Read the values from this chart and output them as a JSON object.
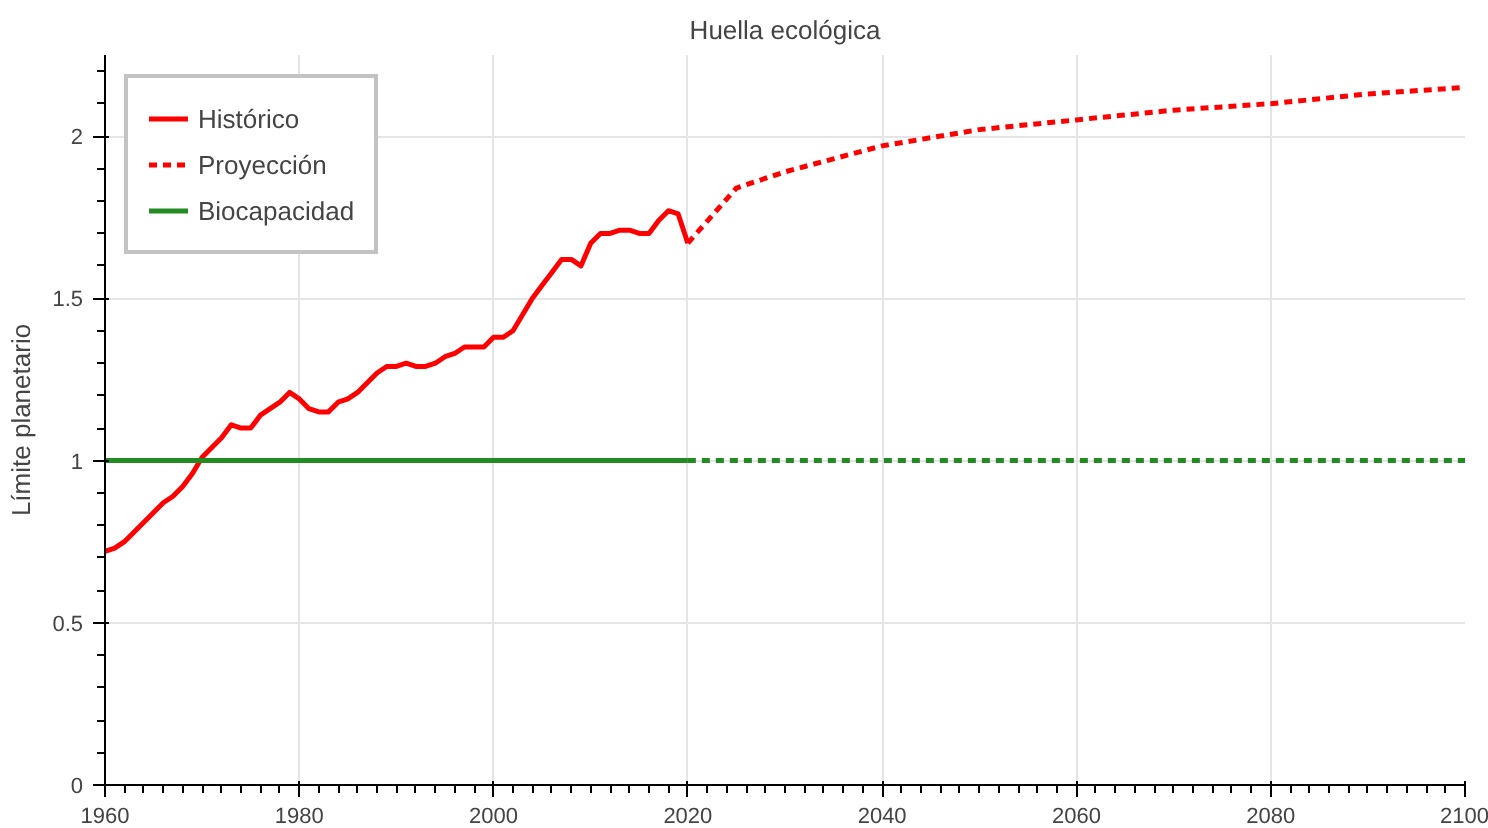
{
  "chart_data": {
    "type": "line",
    "title": "Huella ecológica",
    "ylabel": "Límite planetario",
    "xlim": [
      1960,
      2100
    ],
    "ylim": [
      0,
      2.25
    ],
    "xticks": [
      1960,
      1980,
      2000,
      2020,
      2040,
      2060,
      2080,
      2100
    ],
    "yticks": [
      0,
      0.5,
      1,
      1.5,
      2
    ],
    "grid": true,
    "legend": "top left",
    "series": [
      {
        "name": "Histórico",
        "color": "#ff0000",
        "line_style": "solid",
        "x": [
          1960,
          1961,
          1962,
          1963,
          1964,
          1965,
          1966,
          1967,
          1968,
          1969,
          1970,
          1971,
          1972,
          1973,
          1974,
          1975,
          1976,
          1977,
          1978,
          1979,
          1980,
          1981,
          1982,
          1983,
          1984,
          1985,
          1986,
          1987,
          1988,
          1989,
          1990,
          1991,
          1992,
          1993,
          1994,
          1995,
          1996,
          1997,
          1998,
          1999,
          2000,
          2001,
          2002,
          2003,
          2004,
          2005,
          2006,
          2007,
          2008,
          2009,
          2010,
          2011,
          2012,
          2013,
          2014,
          2015,
          2016,
          2017,
          2018,
          2019,
          2020
        ],
        "values": [
          0.72,
          0.73,
          0.75,
          0.78,
          0.81,
          0.84,
          0.87,
          0.89,
          0.92,
          0.96,
          1.01,
          1.04,
          1.07,
          1.11,
          1.1,
          1.1,
          1.14,
          1.16,
          1.18,
          1.21,
          1.19,
          1.16,
          1.15,
          1.15,
          1.18,
          1.19,
          1.21,
          1.24,
          1.27,
          1.29,
          1.29,
          1.3,
          1.29,
          1.29,
          1.3,
          1.32,
          1.33,
          1.35,
          1.35,
          1.35,
          1.38,
          1.38,
          1.4,
          1.45,
          1.5,
          1.54,
          1.58,
          1.62,
          1.62,
          1.6,
          1.67,
          1.7,
          1.7,
          1.71,
          1.71,
          1.7,
          1.7,
          1.74,
          1.77,
          1.76,
          1.67
        ]
      },
      {
        "name": "Proyección",
        "color": "#ff0000",
        "line_style": "dashed",
        "x": [
          2020,
          2025,
          2030,
          2040,
          2050,
          2060,
          2070,
          2080,
          2090,
          2100
        ],
        "values": [
          1.67,
          1.84,
          1.89,
          1.97,
          2.02,
          2.05,
          2.08,
          2.1,
          2.13,
          2.15
        ]
      },
      {
        "name": "Biocapacidad",
        "color": "#228b22",
        "line_style": "solid",
        "x": [
          1960,
          2020
        ],
        "values": [
          1,
          1
        ]
      },
      {
        "color": "#228b22",
        "line_style": "dashed",
        "x": [
          2020,
          2100
        ],
        "values": [
          1,
          1
        ]
      }
    ]
  }
}
